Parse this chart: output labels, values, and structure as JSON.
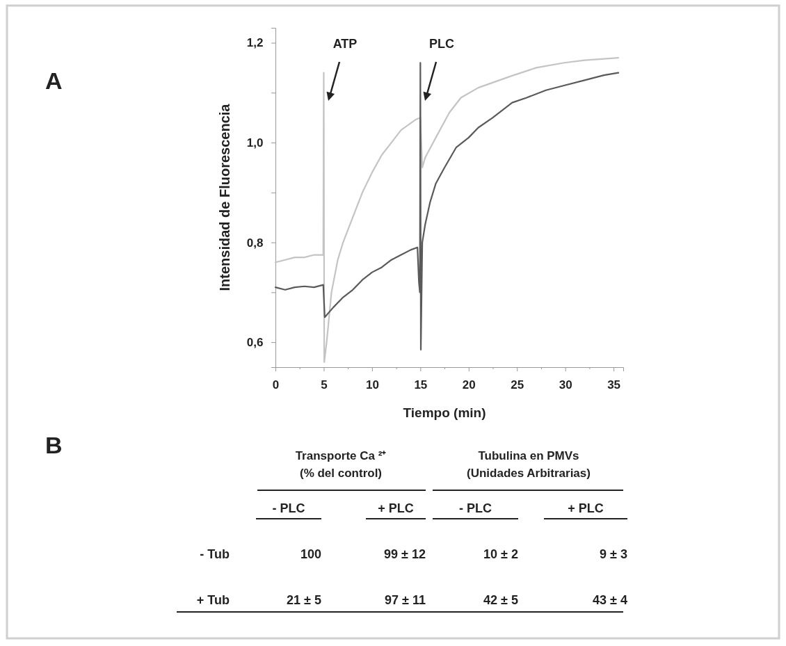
{
  "chart_data": [
    {
      "type": "line",
      "xlabel": "Tiempo (min)",
      "ylabel": "Intensidad de Fluorescencia",
      "xlim": [
        0,
        36
      ],
      "ylim": [
        0.55,
        1.23
      ],
      "xticks": [
        0,
        {
          "value": 2.5,
          "label": null
        },
        5,
        {
          "value": 7.5,
          "label": null
        },
        10,
        {
          "value": 12.5,
          "label": null
        },
        15,
        {
          "value": 17.5,
          "label": null
        },
        20,
        {
          "value": 22.5,
          "label": null
        },
        25,
        {
          "value": 27.5,
          "label": null
        },
        30,
        {
          "value": 32.5,
          "label": null
        },
        35
      ],
      "yticks": [
        {
          "value": 0.6,
          "label": "0,6"
        },
        {
          "value": 0.7,
          "label": null
        },
        {
          "value": 0.8,
          "label": "0,8"
        },
        {
          "value": 0.9,
          "label": null
        },
        {
          "value": 1.0,
          "label": "1,0"
        },
        {
          "value": 1.1,
          "label": null
        },
        {
          "value": 1.2,
          "label": "1,2"
        }
      ],
      "grid": false,
      "marker": "none",
      "line_style": "solid",
      "annotations": [
        "A",
        "ATP",
        "PLC"
      ],
      "series": [
        {
          "color": "#c4c4c4",
          "x": [
            0,
            1,
            2,
            3,
            4,
            4.95,
            5.0,
            5.05,
            5.3,
            5.8,
            6.45,
            7,
            8,
            9,
            10,
            11,
            12,
            13,
            14.5,
            15,
            15.2,
            15.5,
            16.6,
            18,
            19.2,
            21,
            24.5,
            27,
            29.9,
            32,
            35.5
          ],
          "values": [
            0.76,
            0.765,
            0.77,
            0.77,
            0.775,
            0.775,
            1.14,
            0.56,
            0.6,
            0.7,
            0.765,
            0.8,
            0.85,
            0.9,
            0.94,
            0.975,
            1.0,
            1.025,
            1.046,
            1.05,
            0.95,
            0.97,
            1.01,
            1.06,
            1.09,
            1.11,
            1.134,
            1.15,
            1.16,
            1.165,
            1.17
          ]
        },
        {
          "color": "#5a5a5a",
          "x": [
            0,
            1,
            2,
            3,
            4,
            4.95,
            5.1,
            6,
            7,
            8,
            9,
            10,
            11,
            12,
            13,
            14,
            14.7,
            14.85,
            14.95,
            15.0,
            15.05,
            15.2,
            15.5,
            16,
            16.6,
            17.5,
            18.7,
            20,
            21,
            22.5,
            24.5,
            26,
            28,
            30,
            32,
            34,
            35.5
          ],
          "values": [
            0.71,
            0.705,
            0.71,
            0.712,
            0.71,
            0.715,
            0.65,
            0.67,
            0.69,
            0.705,
            0.725,
            0.74,
            0.75,
            0.765,
            0.775,
            0.785,
            0.79,
            0.72,
            0.7,
            1.16,
            0.585,
            0.8,
            0.836,
            0.88,
            0.918,
            0.95,
            0.99,
            1.01,
            1.03,
            1.05,
            1.08,
            1.09,
            1.105,
            1.115,
            1.125,
            1.135,
            1.14
          ]
        }
      ]
    },
    {
      "type": "other",
      "categories": [
        "- PLC",
        "+ PLC",
        "- PLC",
        "+ PLC"
      ],
      "y_categories": [
        "- Tub",
        "+ Tub"
      ],
      "cell_labels": [
        [
          "100",
          "99 ± 12",
          "10 ± 2",
          "9 ± 3"
        ],
        [
          "21 ± 5",
          "97 ± 11",
          "42 ± 5",
          "43 ± 4"
        ]
      ],
      "annotations": [
        "B",
        "Transporte Ca ²⁺",
        "(% del control)",
        "Tubulina en PMVs",
        "(Unidades Arbitrarias)"
      ]
    }
  ]
}
